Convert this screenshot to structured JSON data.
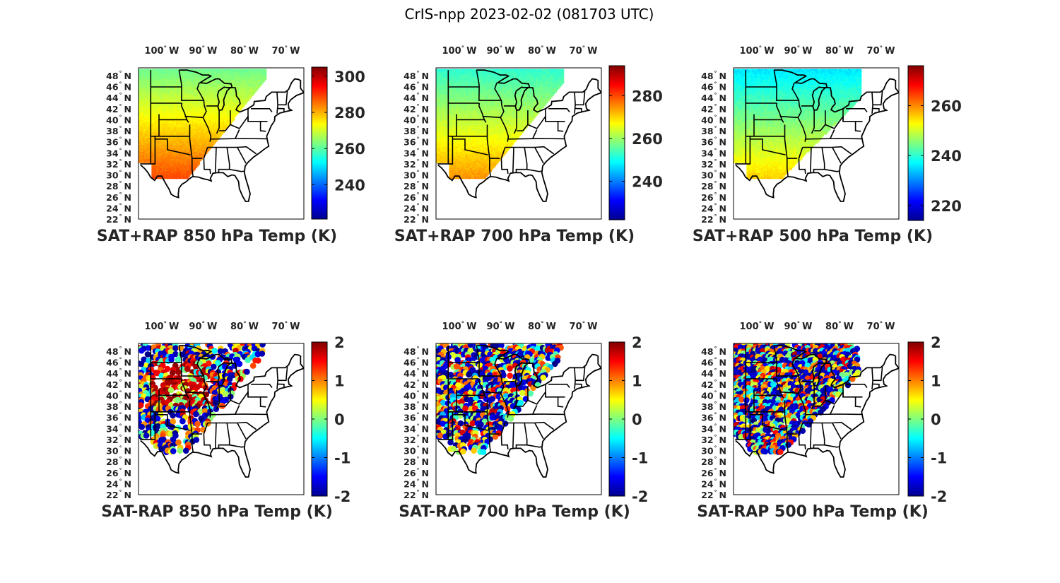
{
  "figure": {
    "title": "CrIS-npp 2023-02-02 (081703 UTC)"
  },
  "axes": {
    "lon_labels": [
      "100",
      "90",
      "80",
      "70"
    ],
    "lon_hemisphere": "W",
    "lat_labels": [
      "48",
      "46",
      "44",
      "42",
      "40",
      "38",
      "36",
      "34",
      "32",
      "30",
      "28",
      "26",
      "24",
      "22"
    ],
    "lat_hemisphere": "N",
    "degree_symbol": "°"
  },
  "panels": [
    {
      "id": "p850",
      "title": "SAT+RAP 850 hPa Temp (K)",
      "colormap": "jet",
      "clim": [
        221,
        305
      ],
      "colorbar_ticks": [
        "300",
        "280",
        "260",
        "240"
      ],
      "colorbar_tick_values": [
        300,
        280,
        260,
        240
      ]
    },
    {
      "id": "p700",
      "title": "SAT+RAP 700 hPa Temp (K)",
      "colormap": "jet",
      "clim": [
        222,
        294
      ],
      "colorbar_ticks": [
        "280",
        "260",
        "240"
      ],
      "colorbar_tick_values": [
        280,
        260,
        240
      ]
    },
    {
      "id": "p500",
      "title": "SAT+RAP 500 hPa Temp (K)",
      "colormap": "jet",
      "clim": [
        214,
        276
      ],
      "colorbar_ticks": [
        "260",
        "240",
        "220"
      ],
      "colorbar_tick_values": [
        260,
        240,
        220
      ]
    },
    {
      "id": "d850",
      "title": "SAT-RAP 850 hPa Temp (K)",
      "colormap": "jet",
      "clim": [
        -2,
        2
      ],
      "colorbar_ticks": [
        "2",
        "1",
        "0",
        "-1",
        "-2"
      ],
      "colorbar_tick_values": [
        2,
        1,
        0,
        -1,
        -2
      ]
    },
    {
      "id": "d700",
      "title": "SAT-RAP 700 hPa Temp (K)",
      "colormap": "jet",
      "clim": [
        -2,
        2
      ],
      "colorbar_ticks": [
        "2",
        "1",
        "0",
        "-1",
        "-2"
      ],
      "colorbar_tick_values": [
        2,
        1,
        0,
        -1,
        -2
      ]
    },
    {
      "id": "d500",
      "title": "SAT-RAP 500 hPa Temp (K)",
      "colormap": "jet",
      "clim": [
        -2,
        2
      ],
      "colorbar_ticks": [
        "2",
        "1",
        "0",
        "-1",
        "-2"
      ],
      "colorbar_tick_values": [
        2,
        1,
        0,
        -1,
        -2
      ]
    }
  ]
}
